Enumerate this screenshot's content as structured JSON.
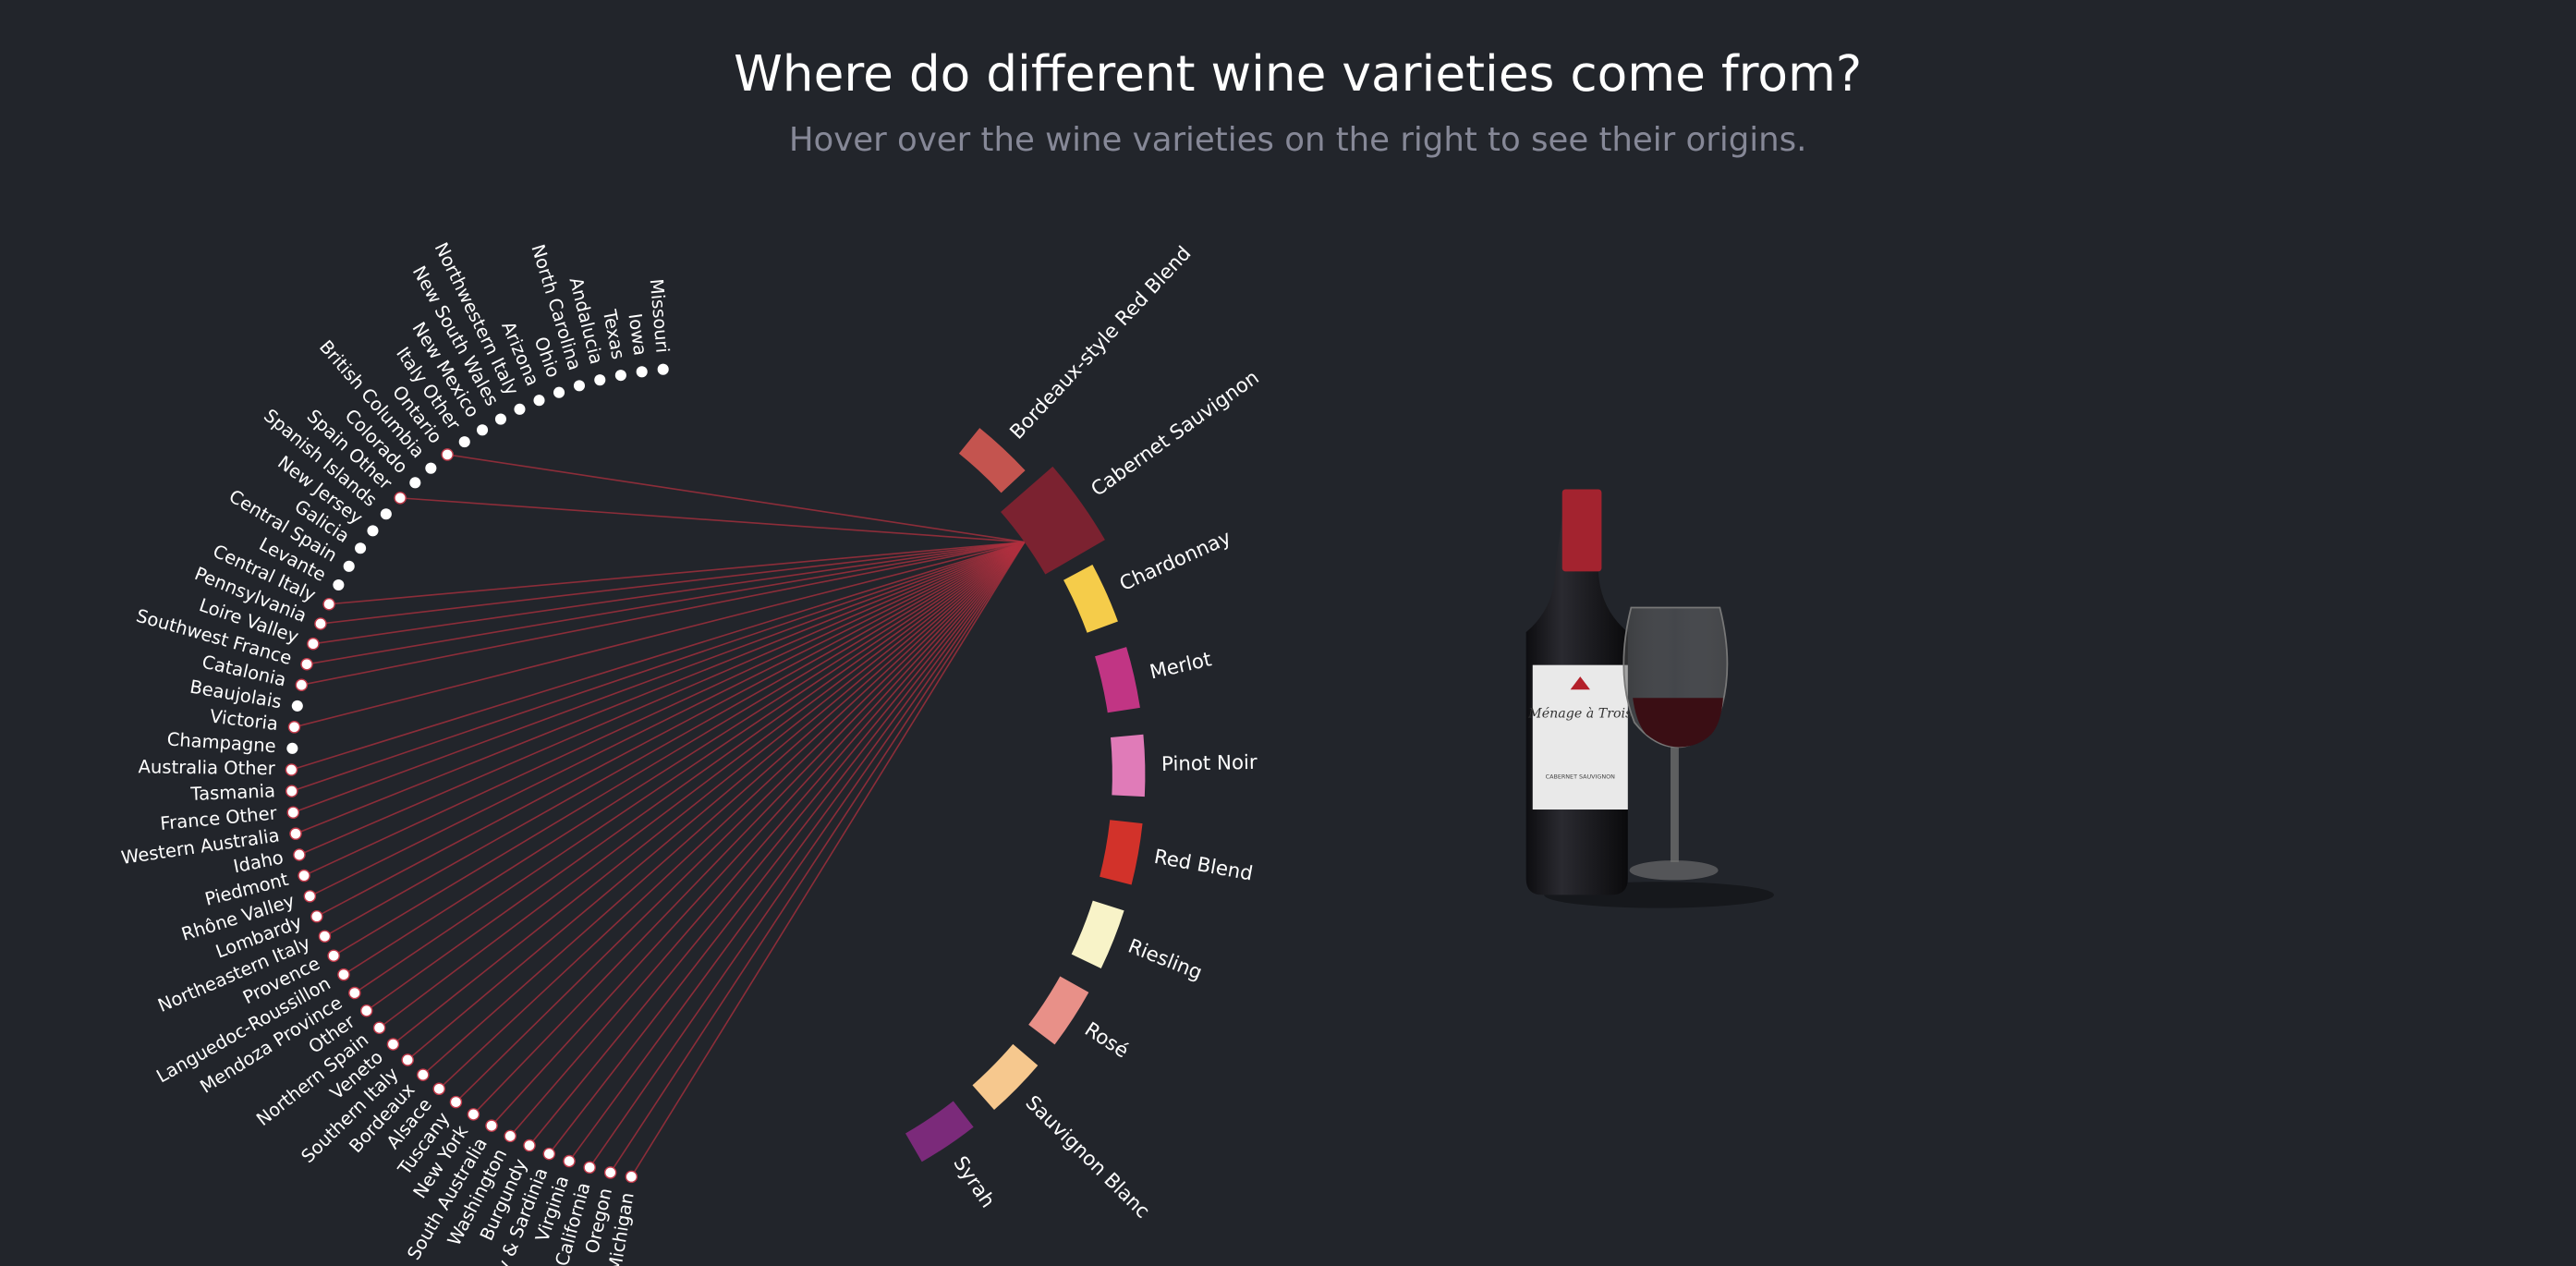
{
  "header": {
    "title": "Where do different wine varieties come from?",
    "subtitle": "Hover over the wine varieties on the right to see their origins."
  },
  "varieties": [
    {
      "label": "Bordeaux-style Red Blend",
      "color": "#c4544f",
      "active": false
    },
    {
      "label": "Cabernet Sauvignon",
      "color": "#7b2230",
      "active": true
    },
    {
      "label": "Chardonnay",
      "color": "#f5cc4a",
      "active": false
    },
    {
      "label": "Merlot",
      "color": "#c13584",
      "active": false
    },
    {
      "label": "Pinot Noir",
      "color": "#e07bb8",
      "active": false
    },
    {
      "label": "Red Blend",
      "color": "#d2322a",
      "active": false
    },
    {
      "label": "Riesling",
      "color": "#f8f3c8",
      "active": false
    },
    {
      "label": "Rosé",
      "color": "#e89088",
      "active": false
    },
    {
      "label": "Sauvignon Blanc",
      "color": "#f6c88e",
      "active": false
    },
    {
      "label": "Syrah",
      "color": "#7b2a7a",
      "active": false
    }
  ],
  "regions": [
    {
      "label": "Missouri",
      "linked": false
    },
    {
      "label": "Iowa",
      "linked": false
    },
    {
      "label": "Texas",
      "linked": false
    },
    {
      "label": "Andalucia",
      "linked": false
    },
    {
      "label": "North Carolina",
      "linked": false
    },
    {
      "label": "Ohio",
      "linked": false
    },
    {
      "label": "Arizona",
      "linked": false
    },
    {
      "label": "Northwestern Italy",
      "linked": false
    },
    {
      "label": "New South Wales",
      "linked": false
    },
    {
      "label": "New Mexico",
      "linked": false
    },
    {
      "label": "Italy Other",
      "linked": false
    },
    {
      "label": "Ontario",
      "linked": true
    },
    {
      "label": "British Columbia",
      "linked": false
    },
    {
      "label": "Colorado",
      "linked": false
    },
    {
      "label": "Spain Other",
      "linked": true
    },
    {
      "label": "Spanish Islands",
      "linked": false
    },
    {
      "label": "New Jersey",
      "linked": false
    },
    {
      "label": "Galicia",
      "linked": false
    },
    {
      "label": "Central Spain",
      "linked": false
    },
    {
      "label": "Levante",
      "linked": false
    },
    {
      "label": "Central Italy",
      "linked": true
    },
    {
      "label": "Pennsylvania",
      "linked": true
    },
    {
      "label": "Loire Valley",
      "linked": true
    },
    {
      "label": "Southwest France",
      "linked": true
    },
    {
      "label": "Catalonia",
      "linked": true
    },
    {
      "label": "Beaujolais",
      "linked": false
    },
    {
      "label": "Victoria",
      "linked": true
    },
    {
      "label": "Champagne",
      "linked": false
    },
    {
      "label": "Australia Other",
      "linked": true
    },
    {
      "label": "Tasmania",
      "linked": true
    },
    {
      "label": "France Other",
      "linked": true
    },
    {
      "label": "Western Australia",
      "linked": true
    },
    {
      "label": "Idaho",
      "linked": true
    },
    {
      "label": "Piedmont",
      "linked": true
    },
    {
      "label": "Rhône Valley",
      "linked": true
    },
    {
      "label": "Lombardy",
      "linked": true
    },
    {
      "label": "Northeastern Italy",
      "linked": true
    },
    {
      "label": "Provence",
      "linked": true
    },
    {
      "label": "Languedoc-Roussillon",
      "linked": true
    },
    {
      "label": "Mendoza Province",
      "linked": true
    },
    {
      "label": "Other",
      "linked": true
    },
    {
      "label": "Northern Spain",
      "linked": true
    },
    {
      "label": "Veneto",
      "linked": true
    },
    {
      "label": "Southern Italy",
      "linked": true
    },
    {
      "label": "Bordeaux",
      "linked": true
    },
    {
      "label": "Alsace",
      "linked": true
    },
    {
      "label": "Tuscany",
      "linked": true
    },
    {
      "label": "New York",
      "linked": true
    },
    {
      "label": "South Australia",
      "linked": true
    },
    {
      "label": "Washington",
      "linked": true
    },
    {
      "label": "Burgundy",
      "linked": true
    },
    {
      "label": "Sicily & Sardinia",
      "linked": true
    },
    {
      "label": "Virginia",
      "linked": true
    },
    {
      "label": "California",
      "linked": true
    },
    {
      "label": "Oregon",
      "linked": true
    },
    {
      "label": "Michigan",
      "linked": true
    }
  ],
  "bottle": {
    "brand": "Ménage à Trois",
    "variety": "CABERNET SAUVIGNON"
  }
}
